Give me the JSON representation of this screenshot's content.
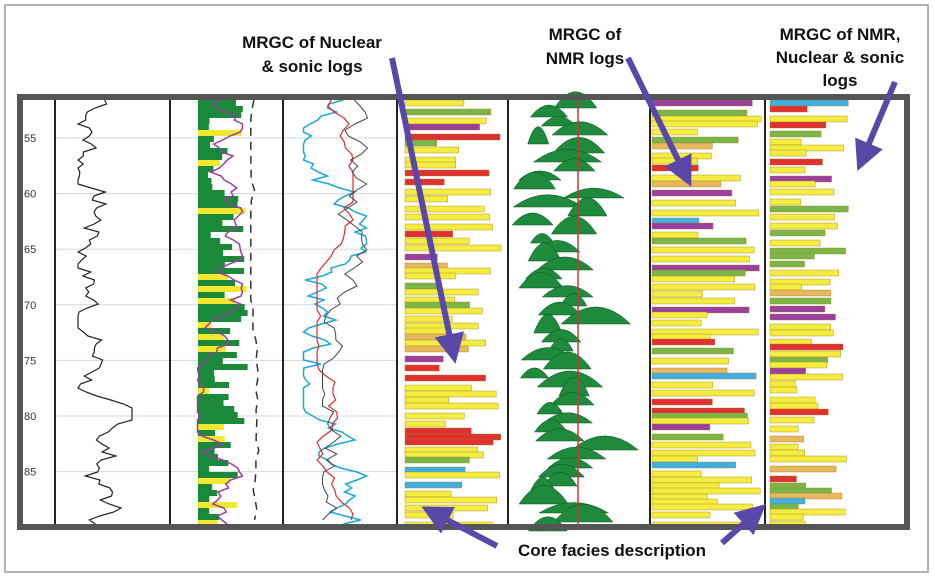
{
  "annotations": {
    "nuclear_sonic": [
      "MRGC of Nuclear",
      "& sonic logs"
    ],
    "nmr": [
      "MRGC of",
      "NMR logs"
    ],
    "nmr_nuclear_sonic": [
      "MRGC of NMR,",
      "Nuclear & sonic",
      "logs"
    ],
    "core_facies": "Core facies description"
  },
  "depth_axis": {
    "labels": [
      "55",
      "60",
      "65",
      "70",
      "75",
      "80",
      "85"
    ]
  }
}
